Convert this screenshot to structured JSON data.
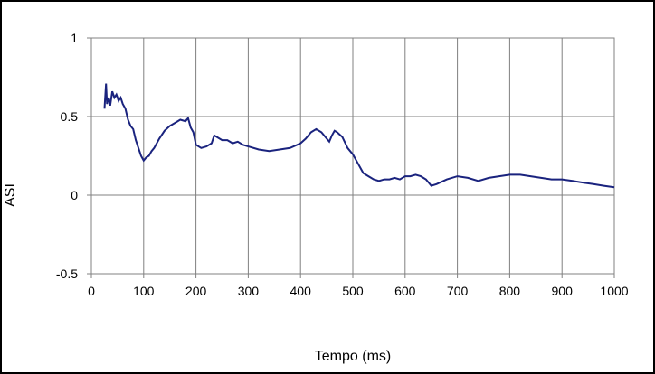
{
  "chart_data": {
    "type": "line",
    "title": "",
    "xlabel": "Tempo (ms)",
    "ylabel": "ASI",
    "xlim": [
      0,
      1000
    ],
    "ylim": [
      -0.5,
      1
    ],
    "xticks": [
      0,
      100,
      200,
      300,
      400,
      500,
      600,
      700,
      800,
      900,
      1000
    ],
    "yticks": [
      1,
      0.5,
      0,
      -0.5
    ],
    "ytick_labels": [
      "1",
      "0.5",
      "0",
      "-0.5"
    ],
    "grid": true,
    "legend": "none",
    "series": [
      {
        "color": "#1a237e",
        "x": [
          25,
          28,
          30,
          33,
          36,
          40,
          44,
          48,
          52,
          56,
          60,
          65,
          70,
          75,
          80,
          85,
          90,
          95,
          100,
          105,
          110,
          115,
          120,
          130,
          140,
          150,
          160,
          170,
          180,
          185,
          190,
          195,
          200,
          210,
          220,
          230,
          235,
          240,
          250,
          260,
          270,
          280,
          290,
          300,
          320,
          340,
          360,
          380,
          400,
          410,
          420,
          430,
          440,
          450,
          455,
          460,
          465,
          470,
          480,
          490,
          500,
          510,
          520,
          530,
          540,
          550,
          560,
          570,
          580,
          590,
          600,
          610,
          620,
          630,
          640,
          650,
          660,
          680,
          700,
          720,
          740,
          760,
          780,
          800,
          820,
          840,
          860,
          880,
          900,
          920,
          940,
          960,
          980,
          1000
        ],
        "y": [
          0.55,
          0.71,
          0.58,
          0.62,
          0.57,
          0.66,
          0.62,
          0.64,
          0.6,
          0.62,
          0.58,
          0.55,
          0.48,
          0.44,
          0.42,
          0.35,
          0.3,
          0.25,
          0.22,
          0.24,
          0.25,
          0.28,
          0.3,
          0.36,
          0.41,
          0.44,
          0.46,
          0.48,
          0.47,
          0.49,
          0.43,
          0.4,
          0.32,
          0.3,
          0.31,
          0.33,
          0.38,
          0.37,
          0.35,
          0.35,
          0.33,
          0.34,
          0.32,
          0.31,
          0.29,
          0.28,
          0.29,
          0.3,
          0.33,
          0.36,
          0.4,
          0.42,
          0.4,
          0.36,
          0.34,
          0.38,
          0.41,
          0.4,
          0.37,
          0.3,
          0.26,
          0.2,
          0.14,
          0.12,
          0.1,
          0.09,
          0.1,
          0.1,
          0.11,
          0.1,
          0.12,
          0.12,
          0.13,
          0.12,
          0.1,
          0.06,
          0.07,
          0.1,
          0.12,
          0.11,
          0.09,
          0.11,
          0.12,
          0.13,
          0.13,
          0.12,
          0.11,
          0.1,
          0.1,
          0.09,
          0.08,
          0.07,
          0.06,
          0.05
        ]
      }
    ]
  }
}
